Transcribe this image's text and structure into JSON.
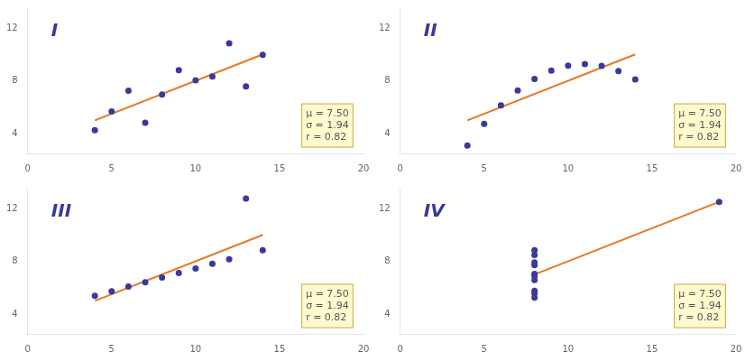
{
  "chart_data": [
    {
      "type": "scatter",
      "annotations": [
        {
          "text": "I",
          "color": "#3a3a98"
        },
        {
          "text": "μ = 7.50\nσ = 1.94\nr = 0.82"
        }
      ],
      "series": [
        {
          "type": "line",
          "color": "#e87722",
          "x": [
            4,
            14
          ],
          "values": [
            5.0,
            10.0
          ]
        },
        {
          "type": "scatter",
          "color": "#3a3a98",
          "x": [
            10,
            8,
            13,
            9,
            11,
            14,
            6,
            4,
            12,
            7,
            5
          ],
          "values": [
            8.04,
            6.95,
            7.58,
            8.81,
            8.33,
            9.96,
            7.24,
            4.26,
            10.84,
            4.82,
            5.68
          ]
        }
      ],
      "xlim": [
        0,
        20
      ],
      "xticks": [
        0,
        5,
        10,
        15,
        20
      ],
      "ylim": [
        2.5,
        13.5
      ],
      "yticks": [
        4,
        8,
        12
      ],
      "grid": false
    },
    {
      "type": "scatter",
      "annotations": [
        {
          "text": "II",
          "color": "#3a3a98"
        },
        {
          "text": "μ = 7.50\nσ = 1.94\nr = 0.82"
        }
      ],
      "series": [
        {
          "type": "line",
          "color": "#e87722",
          "x": [
            4,
            14
          ],
          "values": [
            5.0,
            10.0
          ]
        },
        {
          "type": "scatter",
          "color": "#3a3a98",
          "x": [
            10,
            8,
            13,
            9,
            11,
            14,
            6,
            4,
            12,
            7,
            5
          ],
          "values": [
            9.14,
            8.14,
            8.74,
            8.77,
            9.26,
            8.1,
            6.13,
            3.1,
            9.13,
            7.26,
            4.74
          ]
        }
      ],
      "xlim": [
        0,
        20
      ],
      "xticks": [
        0,
        5,
        10,
        15,
        20
      ],
      "ylim": [
        2.5,
        13.5
      ],
      "yticks": [
        4,
        8,
        12
      ],
      "grid": false
    },
    {
      "type": "scatter",
      "annotations": [
        {
          "text": "III",
          "color": "#3a3a98"
        },
        {
          "text": "μ = 7.50\nσ = 1.94\nr = 0.82"
        }
      ],
      "series": [
        {
          "type": "line",
          "color": "#e87722",
          "x": [
            4,
            14
          ],
          "values": [
            5.0,
            10.0
          ]
        },
        {
          "type": "scatter",
          "color": "#3a3a98",
          "x": [
            10,
            8,
            13,
            9,
            11,
            14,
            6,
            4,
            12,
            7,
            5
          ],
          "values": [
            7.46,
            6.77,
            12.74,
            7.11,
            7.81,
            8.84,
            6.08,
            5.39,
            8.15,
            6.42,
            5.73
          ]
        }
      ],
      "xlim": [
        0,
        20
      ],
      "xticks": [
        0,
        5,
        10,
        15,
        20
      ],
      "ylim": [
        2.5,
        13.5
      ],
      "yticks": [
        4,
        8,
        12
      ],
      "grid": false
    },
    {
      "type": "scatter",
      "annotations": [
        {
          "text": "IV",
          "color": "#3a3a98"
        },
        {
          "text": "μ = 7.50\nσ = 1.94\nr = 0.82"
        }
      ],
      "series": [
        {
          "type": "line",
          "color": "#e87722",
          "x": [
            8,
            19
          ],
          "values": [
            7.0,
            12.5
          ]
        },
        {
          "type": "scatter",
          "color": "#3a3a98",
          "x": [
            8,
            8,
            8,
            8,
            8,
            8,
            8,
            19,
            8,
            8,
            8
          ],
          "values": [
            6.58,
            5.76,
            7.71,
            8.84,
            8.47,
            7.04,
            5.25,
            12.5,
            5.56,
            7.91,
            6.89
          ]
        }
      ],
      "xlim": [
        0,
        20
      ],
      "xticks": [
        0,
        5,
        10,
        15,
        20
      ],
      "ylim": [
        2.5,
        13.5
      ],
      "yticks": [
        4,
        8,
        12
      ],
      "grid": false
    }
  ]
}
